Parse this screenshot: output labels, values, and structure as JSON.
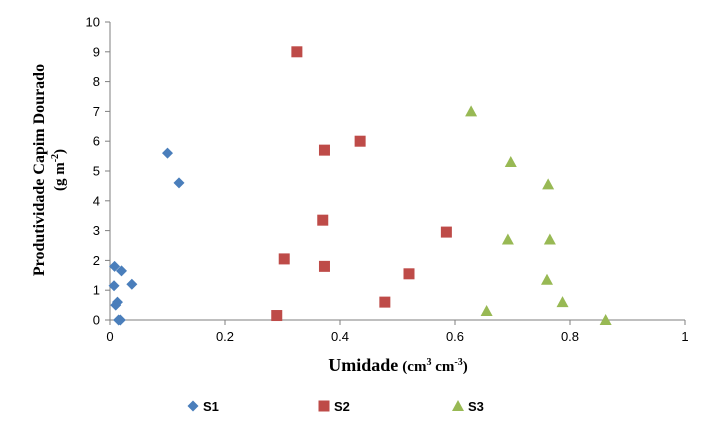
{
  "chart_data": {
    "type": "scatter",
    "xlabel": {
      "main": "Umidade",
      "unit": "(cm",
      "sup1": "3",
      "mid": " cm",
      "sup2": "-3",
      "end": ")"
    },
    "ylabel": {
      "line1": "Produtividade Capim Dourado",
      "line2_a": "(g m",
      "line2_sup": "-2",
      "line2_b": ")"
    },
    "xlim": [
      0,
      1
    ],
    "ylim": [
      0,
      10
    ],
    "xticks": [
      0,
      0.2,
      0.4,
      0.6,
      0.8,
      1
    ],
    "xtick_labels": [
      "0",
      "0.2",
      "0.4",
      "0.6",
      "0.8",
      "1"
    ],
    "yticks": [
      0,
      1,
      2,
      3,
      4,
      5,
      6,
      7,
      8,
      9,
      10
    ],
    "ytick_labels": [
      "0",
      "1",
      "2",
      "3",
      "4",
      "5",
      "6",
      "7",
      "8",
      "9",
      "10"
    ],
    "grid": false,
    "legend_position": "bottom",
    "series": [
      {
        "name": "S1",
        "marker": "diamond",
        "color": "#4a7ebb",
        "points": [
          [
            0.1,
            5.6
          ],
          [
            0.12,
            4.6
          ],
          [
            0.008,
            1.8
          ],
          [
            0.02,
            1.65
          ],
          [
            0.038,
            1.2
          ],
          [
            0.007,
            1.15
          ],
          [
            0.013,
            0.6
          ],
          [
            0.01,
            0.5
          ],
          [
            0.015,
            0.0
          ],
          [
            0.018,
            0.0
          ]
        ]
      },
      {
        "name": "S2",
        "marker": "square",
        "color": "#be4b48",
        "points": [
          [
            0.325,
            9.0
          ],
          [
            0.435,
            6.0
          ],
          [
            0.373,
            5.7
          ],
          [
            0.37,
            3.35
          ],
          [
            0.585,
            2.95
          ],
          [
            0.303,
            2.05
          ],
          [
            0.373,
            1.8
          ],
          [
            0.52,
            1.55
          ],
          [
            0.478,
            0.6
          ],
          [
            0.29,
            0.15
          ]
        ]
      },
      {
        "name": "S3",
        "marker": "triangle",
        "color": "#98b954",
        "points": [
          [
            0.628,
            7.0
          ],
          [
            0.697,
            5.3
          ],
          [
            0.762,
            4.55
          ],
          [
            0.692,
            2.7
          ],
          [
            0.765,
            2.7
          ],
          [
            0.76,
            1.35
          ],
          [
            0.787,
            0.6
          ],
          [
            0.655,
            0.3
          ],
          [
            0.862,
            0.0
          ]
        ]
      }
    ]
  }
}
